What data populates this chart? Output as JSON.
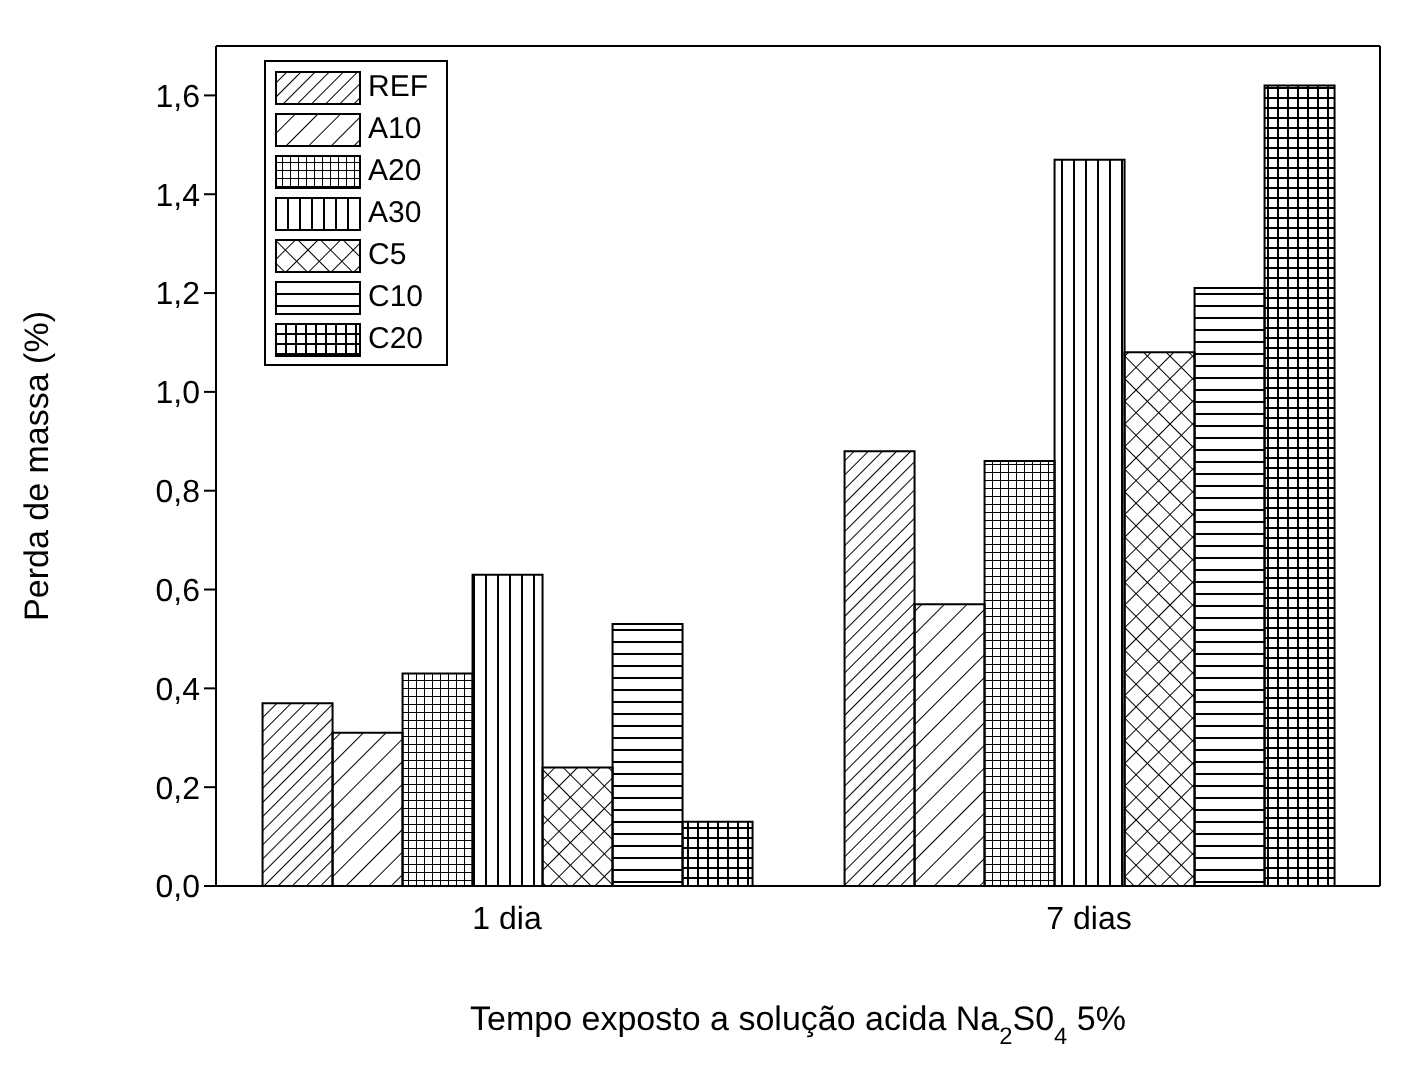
{
  "chart_data": {
    "type": "bar",
    "xlabel": "Tempo exposto a solução acida Na$_{2}$S0$_{4}$ 5%",
    "ylabel": "Perda de massa (%)",
    "categories": [
      "1 dia",
      "7 dias"
    ],
    "series": [
      {
        "name": "REF",
        "color": "#000000",
        "values": [
          0.37,
          0.88
        ]
      },
      {
        "name": "A10",
        "color": "#000000",
        "values": [
          0.31,
          0.57
        ]
      },
      {
        "name": "A20",
        "color": "#000000",
        "values": [
          0.43,
          0.86
        ]
      },
      {
        "name": "A30",
        "color": "#000000",
        "values": [
          0.63,
          1.47
        ]
      },
      {
        "name": "C5",
        "color": "#000000",
        "values": [
          0.24,
          1.08
        ]
      },
      {
        "name": "C10",
        "color": "#000000",
        "values": [
          0.53,
          1.21
        ]
      },
      {
        "name": "C20",
        "color": "#000000",
        "values": [
          0.13,
          1.62
        ]
      }
    ],
    "ylim": [
      0,
      1.7
    ],
    "yticks": [
      {
        "value": 0,
        "label": "0,0"
      },
      {
        "value": 0.2,
        "label": "0,2"
      },
      {
        "value": 0.4,
        "label": "0,4"
      },
      {
        "value": 0.6,
        "label": "0,6"
      },
      {
        "value": 0.8,
        "label": "0,8"
      },
      {
        "value": 1,
        "label": "1,0"
      },
      {
        "value": 1.2,
        "label": "1,2"
      },
      {
        "value": 1.4,
        "label": "1,4"
      },
      {
        "value": 1.6,
        "label": "1,6"
      }
    ],
    "grid": false,
    "legend": "top left"
  }
}
